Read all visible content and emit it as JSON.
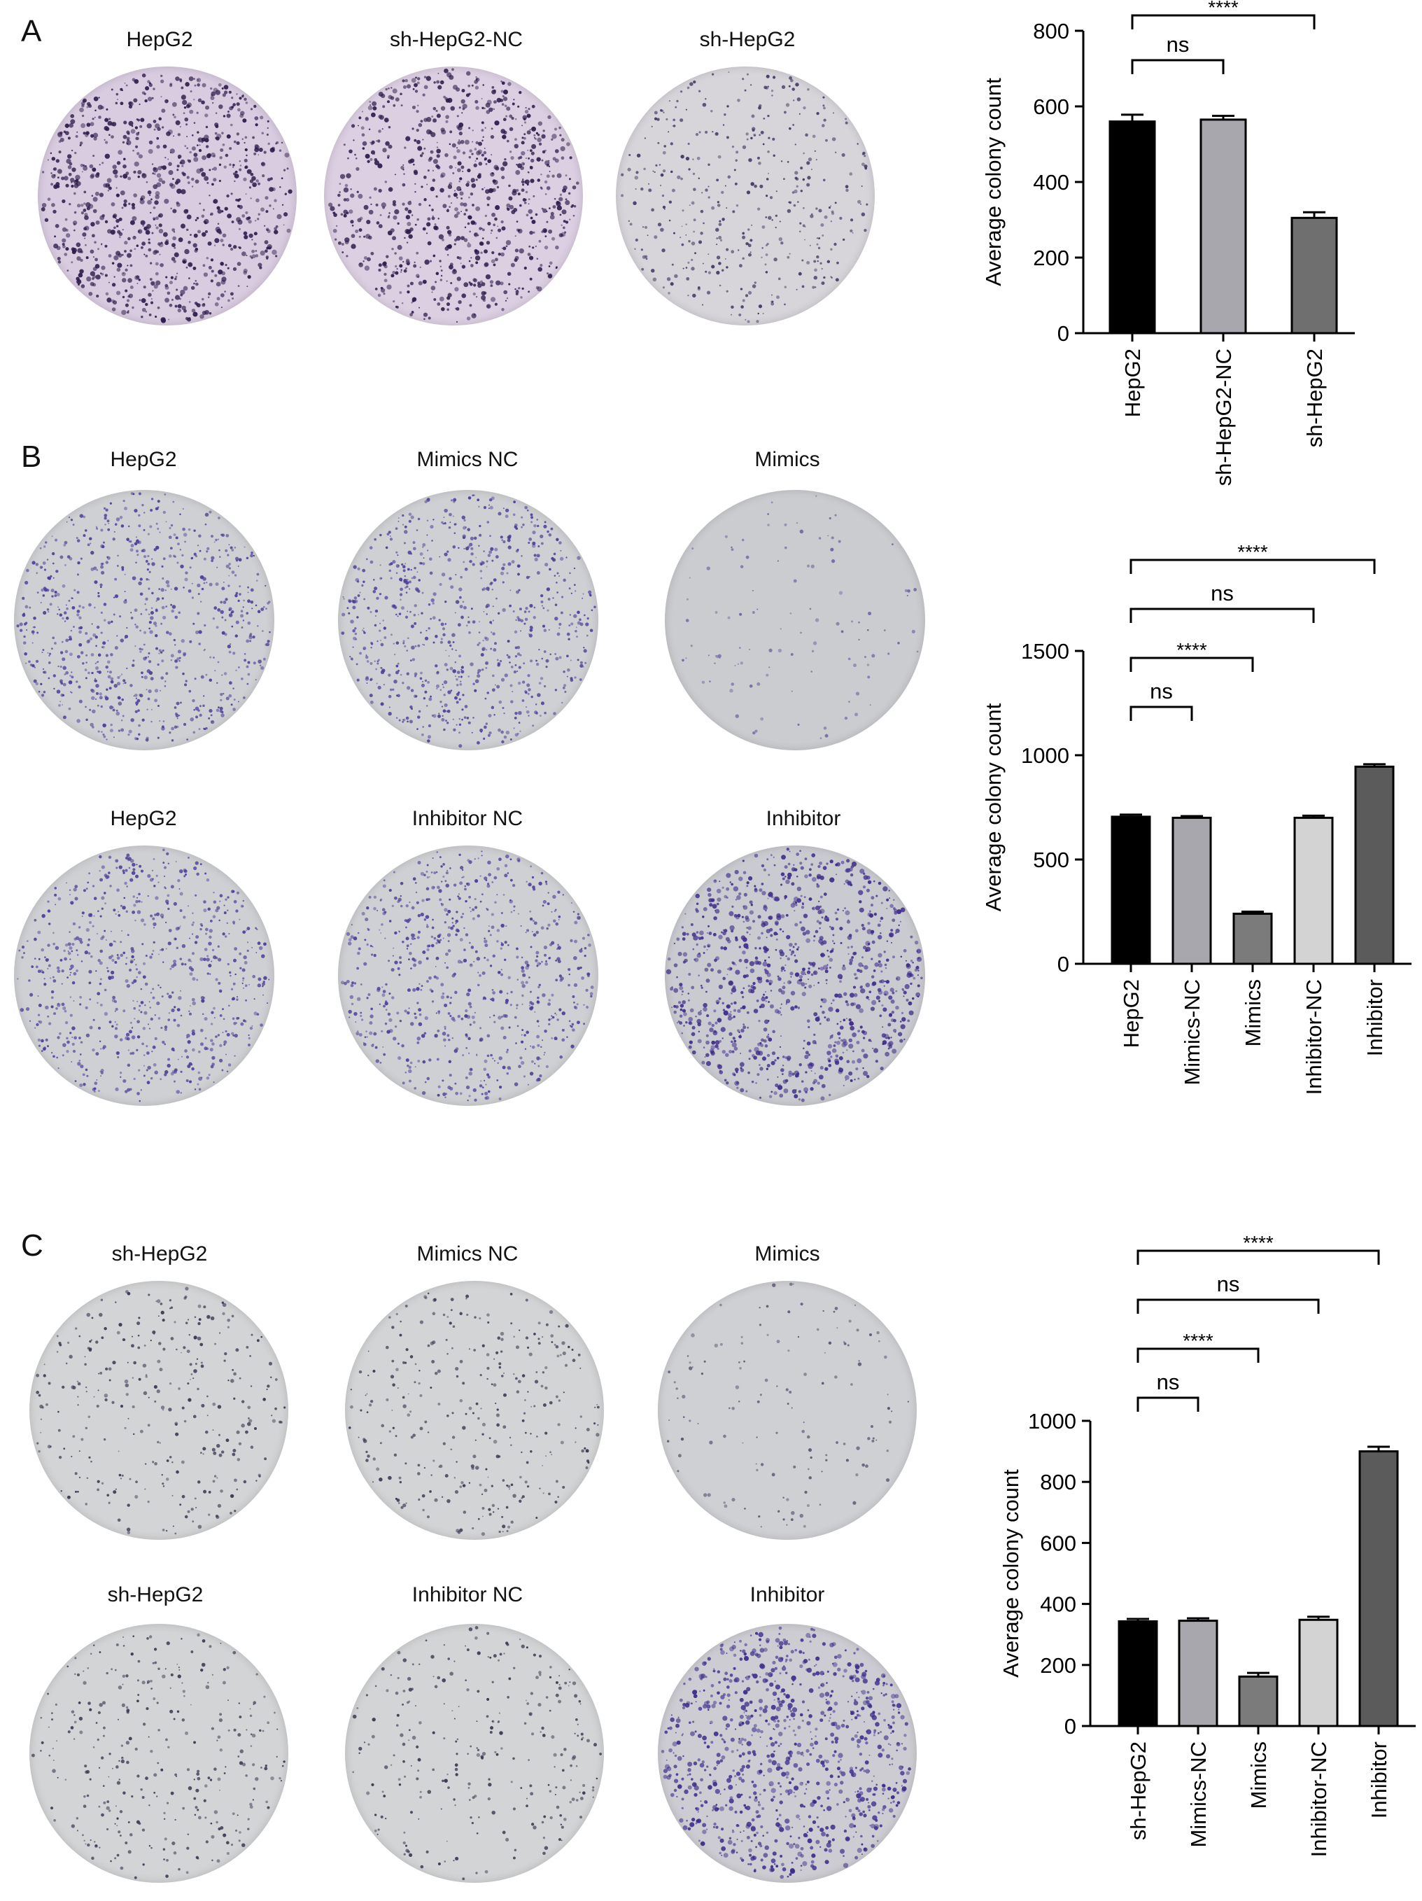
{
  "panels": [
    {
      "letter": "A",
      "dishes": [
        {
          "label": "HepG2",
          "base": "#d9cbe0",
          "dot": "#2c1c4a",
          "density": 1.0
        },
        {
          "label": "sh-HepG2-NC",
          "base": "#dccfe2",
          "dot": "#2c1c4a",
          "density": 0.95
        },
        {
          "label": "sh-HepG2",
          "base": "#d7d5da",
          "dot": "#3d3560",
          "density": 0.45
        }
      ]
    },
    {
      "letter": "B",
      "dishes": [
        {
          "label": "HepG2",
          "base": "#cfd0d3",
          "dot": "#4b3c98",
          "density": 0.85
        },
        {
          "label": "Mimics NC",
          "base": "#cfd0d3",
          "dot": "#4b3c98",
          "density": 0.85
        },
        {
          "label": "Mimics",
          "base": "#cbcccf",
          "dot": "#6b64a0",
          "density": 0.12
        },
        {
          "label": "HepG2",
          "base": "#cfd0d3",
          "dot": "#4b3c98",
          "density": 0.8
        },
        {
          "label": "Inhibitor NC",
          "base": "#cfd0d3",
          "dot": "#4b3c98",
          "density": 0.8
        },
        {
          "label": "Inhibitor",
          "base": "#cacbd0",
          "dot": "#3e2a8a",
          "density": 1.1
        }
      ]
    },
    {
      "letter": "C",
      "dishes": [
        {
          "label": "sh-HepG2",
          "base": "#d3d4d5",
          "dot": "#3a3550",
          "density": 0.35
        },
        {
          "label": "Mimics NC",
          "base": "#d3d4d5",
          "dot": "#3a3550",
          "density": 0.35
        },
        {
          "label": "Mimics",
          "base": "#cfd0d3",
          "dot": "#555070",
          "density": 0.15
        },
        {
          "label": "sh-HepG2",
          "base": "#d3d4d5",
          "dot": "#3a3550",
          "density": 0.35
        },
        {
          "label": "Inhibitor NC",
          "base": "#d3d4d5",
          "dot": "#3a3550",
          "density": 0.3
        },
        {
          "label": "Inhibitor",
          "base": "#ccccd2",
          "dot": "#3b2d8c",
          "density": 1.0
        }
      ]
    }
  ],
  "chart_data": [
    {
      "type": "bar",
      "categories": [
        "HepG2",
        "sh-HepG2-NC",
        "sh-HepG2"
      ],
      "values": [
        560,
        565,
        305
      ],
      "errors": [
        18,
        10,
        15
      ],
      "colors": [
        "#000000",
        "#a7a7ad",
        "#6f6f6f"
      ],
      "ylabel": "Average colony count",
      "ylim": [
        0,
        800
      ],
      "yticks": [
        0,
        200,
        400,
        600,
        800
      ],
      "significance": [
        {
          "from": 0,
          "to": 1,
          "label": "ns"
        },
        {
          "from": 0,
          "to": 2,
          "label": "****"
        }
      ]
    },
    {
      "type": "bar",
      "categories": [
        "HepG2",
        "Mimics-NC",
        "Mimics",
        "Inhibitor-NC",
        "Inhibitor"
      ],
      "values": [
        705,
        700,
        240,
        700,
        945
      ],
      "errors": [
        10,
        8,
        10,
        10,
        12
      ],
      "colors": [
        "#000000",
        "#a7a7ad",
        "#7b7b7b",
        "#d3d3d3",
        "#5b5b5b"
      ],
      "ylabel": "Average colony count",
      "ylim": [
        0,
        1500
      ],
      "yticks": [
        0,
        500,
        1000,
        1500
      ],
      "significance": [
        {
          "from": 0,
          "to": 1,
          "label": "ns"
        },
        {
          "from": 0,
          "to": 2,
          "label": "****"
        },
        {
          "from": 0,
          "to": 3,
          "label": "ns"
        },
        {
          "from": 0,
          "to": 4,
          "label": "****"
        }
      ]
    },
    {
      "type": "bar",
      "categories": [
        "sh-HepG2",
        "Mimics-NC",
        "Mimics",
        "Inhibitor-NC",
        "Inhibitor"
      ],
      "values": [
        343,
        345,
        162,
        348,
        900
      ],
      "errors": [
        8,
        8,
        12,
        10,
        15
      ],
      "colors": [
        "#000000",
        "#a7a7ad",
        "#7b7b7b",
        "#d3d3d3",
        "#5b5b5b"
      ],
      "ylabel": "Average colony count",
      "ylim": [
        0,
        1000
      ],
      "yticks": [
        0,
        200,
        400,
        600,
        800,
        1000
      ],
      "significance": [
        {
          "from": 0,
          "to": 1,
          "label": "ns"
        },
        {
          "from": 0,
          "to": 2,
          "label": "****"
        },
        {
          "from": 0,
          "to": 3,
          "label": "ns"
        },
        {
          "from": 0,
          "to": 4,
          "label": "****"
        }
      ]
    }
  ]
}
